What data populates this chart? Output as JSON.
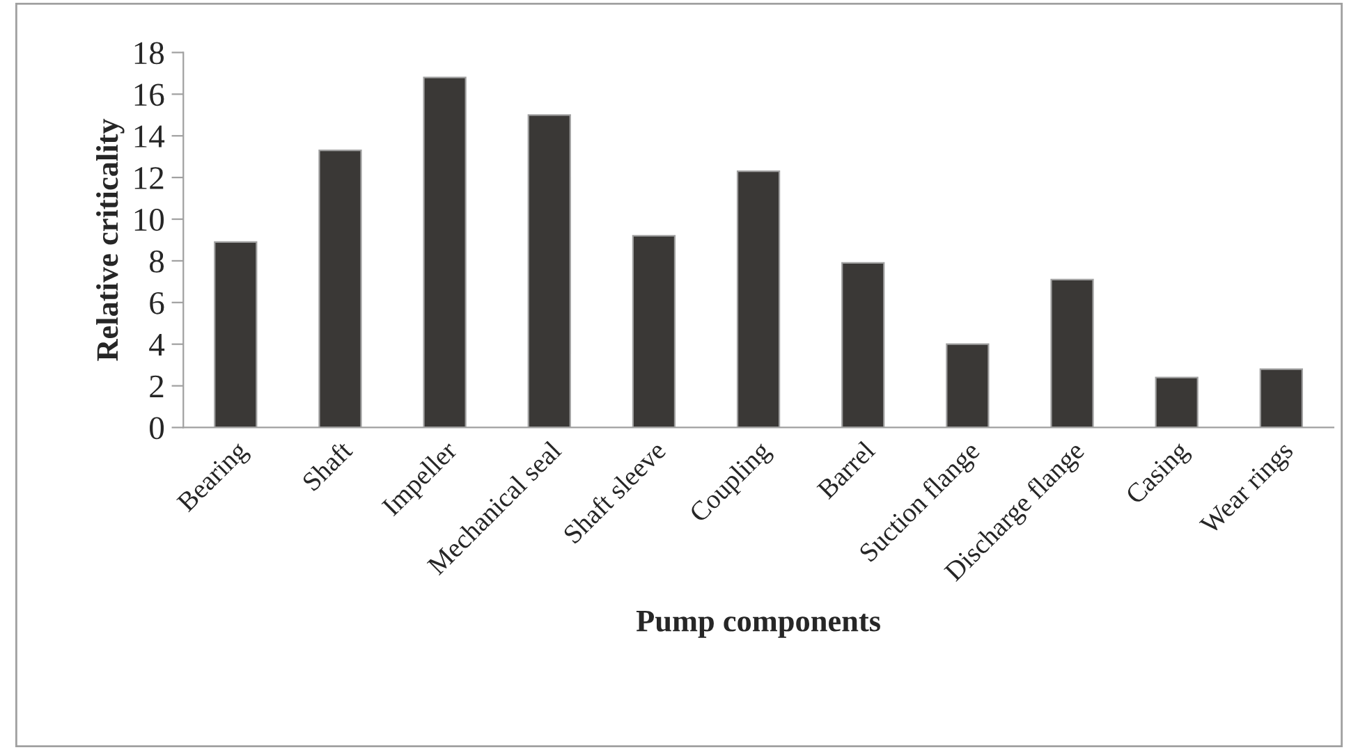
{
  "chart_data": {
    "type": "bar",
    "xlabel": "Pump components",
    "ylabel": "Relative criticality",
    "categories": [
      "Bearing",
      "Shaft",
      "Impeller",
      "Mechanical seal",
      "Shaft sleeve",
      "Coupling",
      "Barrel",
      "Suction flange",
      "Discharge flange",
      "Casing",
      "Wear rings"
    ],
    "values": [
      8.9,
      13.3,
      16.8,
      15.0,
      9.2,
      12.3,
      7.9,
      4.0,
      7.1,
      2.4,
      2.8
    ],
    "color": "#3a3836",
    "ylim": [
      0,
      18
    ],
    "yticks": [
      0,
      2,
      4,
      6,
      8,
      10,
      12,
      14,
      16,
      18
    ],
    "grid": false,
    "legend": false
  }
}
